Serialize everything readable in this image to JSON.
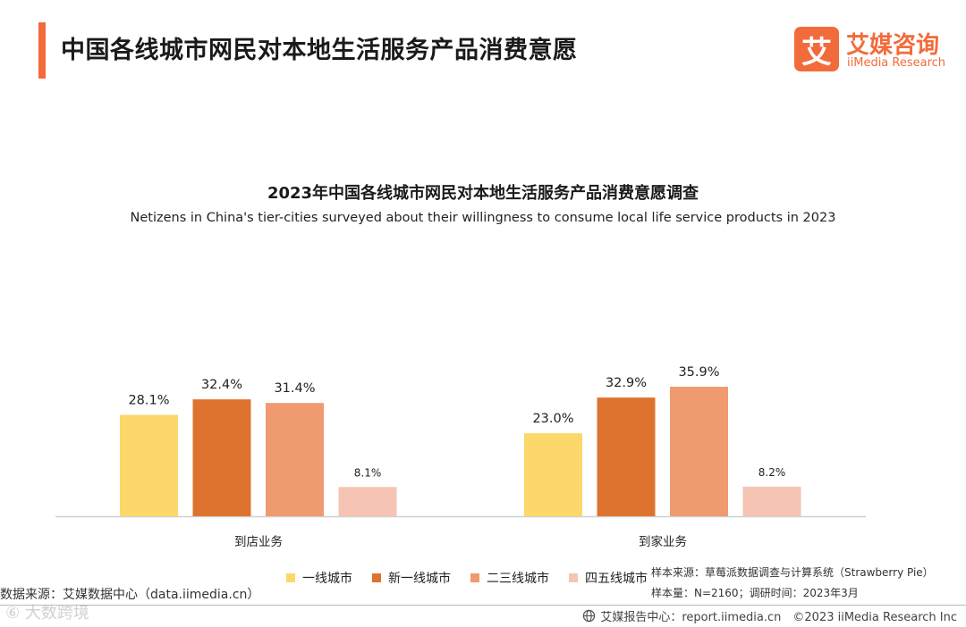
{
  "header": {
    "title": "中国各线城市网民对本地生活服务产品消费意愿"
  },
  "logo": {
    "mark": "艾",
    "name_cn": "艾媒咨询",
    "name_en": "iiMedia Research"
  },
  "colors": {
    "accent": "#F26B3A",
    "series": [
      "#FCD769",
      "#DD732E",
      "#EF9A6F",
      "#F5C4B4"
    ],
    "axis": "#d0d0d0"
  },
  "chart_data": {
    "type": "bar",
    "title": "2023年中国各线城市网民对本地生活服务产品消费意愿调查",
    "subtitle": "Netizens in China's tier-cities surveyed about their willingness to consume local life service products  in 2023",
    "categories": [
      "到店业务",
      "到家业务"
    ],
    "series": [
      {
        "name": "一线城市",
        "values": [
          28.1,
          23.0
        ],
        "labels": [
          "28.1%",
          "23.0%"
        ]
      },
      {
        "name": "新一线城市",
        "values": [
          32.4,
          32.9
        ],
        "labels": [
          "32.4%",
          "32.9%"
        ]
      },
      {
        "name": "二三线城市",
        "values": [
          31.4,
          35.9
        ],
        "labels": [
          "31.4%",
          "35.9%"
        ]
      },
      {
        "name": "四五线城市",
        "values": [
          8.1,
          8.2
        ],
        "labels": [
          "8.1%",
          "8.2%"
        ]
      }
    ],
    "unit": "%",
    "ylim": [
      0,
      35.9
    ],
    "grid": false,
    "legend_position": "bottom"
  },
  "notes": {
    "source": "数据来源：艾媒数据中心（data.iimedia.cn）",
    "sample_source": "样本来源：草莓派数据调查与计算系统（Strawberry Pie）",
    "sample_size": "样本量：N=2160；调研时间：2023年3月"
  },
  "watermark": "⑥ 大数跨境",
  "footer": {
    "text": "艾媒报告中心：report.iimedia.cn　©2023  iiMedia Research  Inc"
  }
}
